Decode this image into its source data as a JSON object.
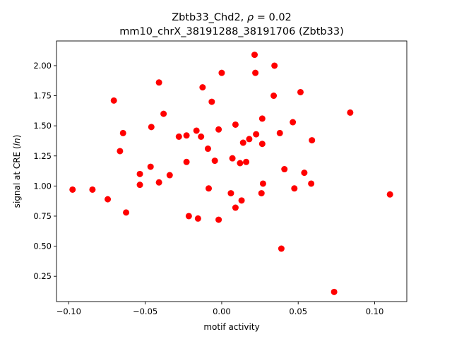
{
  "chart_data": {
    "type": "scatter",
    "title_main": "Zbtb33_Chd2, ",
    "title_rho_symbol": "ρ",
    "title_rho_value": " = 0.02",
    "subtitle": "mm10_chrX_38191288_38191706 (Zbtb33)",
    "xlabel": "motif activity",
    "ylabel_prefix": "signal at CRE (",
    "ylabel_italic": "ln",
    "ylabel_suffix": ")",
    "xlim": [
      -0.108,
      0.121
    ],
    "ylim": [
      0.04,
      2.205
    ],
    "xticks": [
      -0.1,
      -0.05,
      0.0,
      0.05,
      0.1
    ],
    "xtick_labels": [
      "−0.10",
      "−0.05",
      "0.00",
      "0.05",
      "0.10"
    ],
    "yticks": [
      0.25,
      0.5,
      0.75,
      1.0,
      1.25,
      1.5,
      1.75,
      2.0
    ],
    "ytick_labels": [
      "0.25",
      "0.50",
      "0.75",
      "1.00",
      "1.25",
      "1.50",
      "1.75",
      "2.00"
    ],
    "marker_color": "#ff0000",
    "grid": false,
    "x": [
      -0.0975,
      -0.0845,
      -0.0745,
      -0.0705,
      -0.0665,
      -0.0645,
      -0.0625,
      -0.0535,
      -0.0535,
      -0.0465,
      -0.046,
      -0.041,
      -0.041,
      -0.038,
      -0.034,
      -0.028,
      -0.023,
      -0.023,
      -0.0215,
      -0.0165,
      -0.0155,
      -0.0135,
      -0.0125,
      -0.009,
      -0.0085,
      -0.0065,
      -0.0045,
      -0.002,
      -0.002,
      0.0,
      0.006,
      0.007,
      0.009,
      0.009,
      0.012,
      0.013,
      0.014,
      0.016,
      0.018,
      0.0215,
      0.022,
      0.0225,
      0.026,
      0.0265,
      0.0265,
      0.027,
      0.034,
      0.0345,
      0.038,
      0.039,
      0.041,
      0.0465,
      0.0475,
      0.0515,
      0.054,
      0.0585,
      0.059,
      0.0735,
      0.084,
      0.11
    ],
    "y": [
      0.97,
      0.97,
      0.89,
      1.71,
      1.29,
      1.44,
      0.78,
      1.01,
      1.1,
      1.16,
      1.49,
      1.86,
      1.03,
      1.6,
      1.09,
      1.41,
      1.42,
      1.2,
      0.75,
      1.46,
      0.73,
      1.41,
      1.82,
      1.31,
      0.98,
      1.7,
      1.21,
      0.72,
      1.47,
      1.94,
      0.94,
      1.23,
      1.51,
      0.82,
      1.19,
      0.88,
      1.36,
      1.2,
      1.39,
      2.09,
      1.94,
      1.43,
      0.94,
      1.35,
      1.56,
      1.02,
      1.75,
      2.0,
      1.44,
      0.48,
      1.14,
      1.53,
      0.98,
      1.78,
      1.11,
      1.02,
      1.38,
      0.12,
      1.61,
      0.93
    ]
  }
}
